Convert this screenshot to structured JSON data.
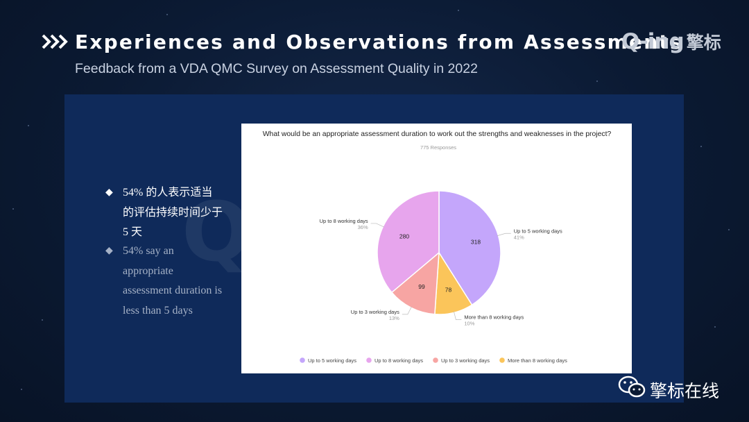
{
  "slide": {
    "title": "Experiences and Observations from Assessments",
    "subtitle": "Feedback from a VDA QMC Survey on Assessment Quality in 2022",
    "logo_latin": "Q-ing",
    "logo_cjk": "擎标",
    "watermark": "Q-ing擎标",
    "wechat_label": "擎标在线"
  },
  "bullets": [
    {
      "marker": "◆",
      "text": "54% 的人表示适当的评估持续时间少于 5 天"
    },
    {
      "marker": "◆",
      "text": "54% say an appropriate assessment duration is less than 5 days"
    }
  ],
  "icons": {
    "title_marker": "triple-chevron-right-icon",
    "bullet_marker": "diamond-icon",
    "wechat": "wechat-icon"
  },
  "colors": {
    "background": "#0b1a33",
    "panel": "#0f2a5a",
    "up_to_5": "#c4a6fb",
    "up_to_8": "#e7a5ed",
    "up_to_3": "#f7a5a3",
    "more_than_8": "#fbc55a"
  },
  "chart_data": {
    "type": "pie",
    "title": "What would be an appropriate assessment duration to work out the strengths and weaknesses in the project?",
    "subtitle": "775 Responses",
    "legend_position": "bottom",
    "slices": [
      {
        "label": "Up to 5 working days",
        "value": 318,
        "percent": "41%",
        "color": "#c4a6fb"
      },
      {
        "label": "More than 8 working days",
        "value": 78,
        "percent": "10%",
        "color": "#fbc55a"
      },
      {
        "label": "Up to 3 working days",
        "value": 99,
        "percent": "13%",
        "color": "#f7a5a3"
      },
      {
        "label": "Up to 8 working days",
        "value": 280,
        "percent": "36%",
        "color": "#e7a5ed"
      }
    ],
    "legend": [
      {
        "label": "Up to 5 working days",
        "color": "#c4a6fb"
      },
      {
        "label": "Up to 8 working days",
        "color": "#e7a5ed"
      },
      {
        "label": "Up to 3 working days",
        "color": "#f7a5a3"
      },
      {
        "label": "More than 8 working days",
        "color": "#fbc55a"
      }
    ]
  }
}
